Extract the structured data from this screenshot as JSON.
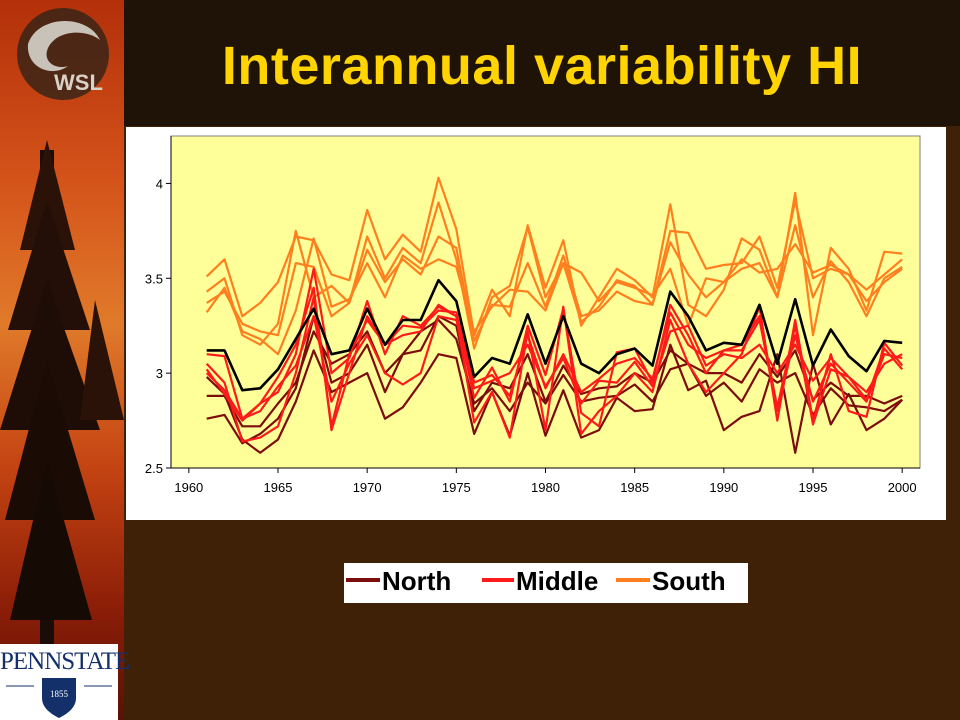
{
  "page_title": "Interannual variability HI",
  "logos": {
    "top_left": "WSL",
    "bottom_left": "PENNSTATE",
    "bottom_left_year": "1855"
  },
  "colors": {
    "north": "#7b0d0d",
    "middle": "#ff1a1a",
    "south": "#ff7f1f",
    "mean": "#000000",
    "plot_bg": "#ffff99",
    "title": "#ffd400"
  },
  "chart_data": {
    "type": "line",
    "title": "",
    "xlabel": "",
    "ylabel": "",
    "xlim": [
      1959,
      2001
    ],
    "ylim": [
      2.5,
      4.25
    ],
    "xticks": [
      "1960",
      "1965",
      "1970",
      "1975",
      "1980",
      "1985",
      "1990",
      "1995",
      "2000"
    ],
    "yticks": [
      "2.5",
      "3",
      "3.5",
      "4"
    ],
    "grid": false,
    "legend_position": "below",
    "legend": [
      {
        "label": "North",
        "group": "north"
      },
      {
        "label": "Middle",
        "group": "middle"
      },
      {
        "label": "South",
        "group": "south"
      }
    ],
    "x": [
      1961,
      1962,
      1963,
      1964,
      1965,
      1966,
      1967,
      1968,
      1969,
      1970,
      1971,
      1972,
      1973,
      1974,
      1975,
      1976,
      1977,
      1978,
      1979,
      1980,
      1981,
      1982,
      1983,
      1984,
      1985,
      1986,
      1987,
      1988,
      1989,
      1990,
      1991,
      1992,
      1993,
      1994,
      1995,
      1996,
      1997,
      1998,
      1999,
      2000
    ],
    "series": [
      {
        "group": "south",
        "values": [
          3.51,
          3.6,
          3.3,
          3.37,
          3.48,
          3.72,
          3.7,
          3.52,
          3.49,
          3.86,
          3.6,
          3.73,
          3.64,
          4.03,
          3.76,
          3.2,
          3.44,
          3.3,
          3.78,
          3.45,
          3.7,
          3.25,
          3.4,
          3.55,
          3.49,
          3.4,
          3.89,
          3.36,
          3.3,
          3.44,
          3.71,
          3.65,
          3.4,
          3.95,
          3.2,
          3.66,
          3.55,
          3.33,
          3.64,
          3.63
        ]
      },
      {
        "group": "south",
        "values": [
          3.43,
          3.5,
          3.2,
          3.15,
          3.26,
          3.75,
          3.4,
          3.46,
          3.37,
          3.72,
          3.5,
          3.66,
          3.58,
          3.9,
          3.6,
          3.13,
          3.4,
          3.46,
          3.77,
          3.4,
          3.58,
          3.27,
          3.35,
          3.49,
          3.46,
          3.36,
          3.75,
          3.74,
          3.55,
          3.57,
          3.58,
          3.72,
          3.45,
          3.91,
          3.5,
          3.55,
          3.52,
          3.44,
          3.52,
          3.6
        ]
      },
      {
        "group": "south",
        "values": [
          3.32,
          3.45,
          3.22,
          3.18,
          3.1,
          3.33,
          3.71,
          3.35,
          3.39,
          3.58,
          3.4,
          3.62,
          3.55,
          3.6,
          3.56,
          3.22,
          3.35,
          3.44,
          3.43,
          3.33,
          3.58,
          3.53,
          3.38,
          3.48,
          3.45,
          3.41,
          3.55,
          3.25,
          3.5,
          3.48,
          3.6,
          3.53,
          3.55,
          3.68,
          3.53,
          3.57,
          3.52,
          3.38,
          3.48,
          3.55
        ]
      },
      {
        "group": "south",
        "values": [
          3.37,
          3.43,
          3.26,
          3.22,
          3.2,
          3.58,
          3.56,
          3.3,
          3.37,
          3.65,
          3.48,
          3.6,
          3.52,
          3.72,
          3.66,
          3.17,
          3.36,
          3.35,
          3.58,
          3.35,
          3.62,
          3.3,
          3.33,
          3.43,
          3.38,
          3.36,
          3.69,
          3.52,
          3.4,
          3.48,
          3.55,
          3.58,
          3.4,
          3.78,
          3.4,
          3.59,
          3.48,
          3.3,
          3.5,
          3.56
        ]
      },
      {
        "group": "north",
        "values": [
          2.98,
          2.89,
          2.65,
          2.58,
          2.65,
          2.85,
          3.12,
          2.9,
          2.95,
          3.0,
          2.76,
          2.82,
          2.95,
          3.1,
          3.08,
          2.68,
          2.9,
          2.67,
          3.0,
          2.67,
          2.91,
          2.66,
          2.7,
          2.87,
          2.8,
          2.81,
          3.15,
          2.91,
          2.96,
          2.7,
          2.77,
          2.8,
          3.1,
          2.58,
          3.05,
          2.73,
          2.89,
          2.7,
          2.76,
          2.86
        ]
      },
      {
        "group": "north",
        "values": [
          2.76,
          2.78,
          2.63,
          2.68,
          2.76,
          2.92,
          3.3,
          2.95,
          3.0,
          3.15,
          2.9,
          3.1,
          3.22,
          3.28,
          3.18,
          2.84,
          2.92,
          2.8,
          2.95,
          2.84,
          2.99,
          2.85,
          2.87,
          2.88,
          2.94,
          2.85,
          3.02,
          3.05,
          2.88,
          2.95,
          2.85,
          3.02,
          2.95,
          3.0,
          2.78,
          2.92,
          2.83,
          2.82,
          2.8,
          2.86
        ]
      },
      {
        "group": "north",
        "values": [
          2.88,
          2.88,
          2.72,
          2.72,
          2.84,
          2.95,
          3.22,
          3.05,
          3.1,
          3.22,
          3.0,
          3.1,
          3.12,
          3.3,
          3.25,
          2.8,
          2.95,
          2.92,
          3.1,
          2.85,
          3.04,
          2.89,
          2.92,
          2.93,
          3.0,
          2.95,
          3.12,
          3.05,
          3.0,
          3.0,
          2.95,
          3.1,
          2.98,
          3.12,
          2.86,
          2.95,
          2.88,
          2.88,
          2.84,
          2.88
        ]
      },
      {
        "group": "middle",
        "values": [
          3.02,
          2.89,
          2.75,
          2.84,
          2.9,
          3.1,
          3.55,
          3.0,
          3.08,
          3.38,
          3.1,
          3.3,
          3.25,
          3.35,
          3.3,
          2.74,
          2.9,
          2.66,
          3.22,
          2.7,
          3.35,
          2.68,
          2.8,
          2.88,
          3.0,
          2.9,
          3.28,
          3.05,
          2.9,
          3.0,
          3.1,
          3.35,
          2.75,
          3.28,
          2.75,
          3.1,
          2.8,
          2.77,
          3.16,
          3.04
        ]
      },
      {
        "group": "middle",
        "values": [
          3.1,
          3.09,
          2.76,
          2.84,
          2.98,
          3.15,
          3.45,
          2.7,
          3.0,
          3.3,
          3.15,
          3.2,
          3.22,
          3.36,
          3.3,
          2.87,
          3.03,
          2.85,
          3.25,
          2.99,
          3.34,
          2.79,
          2.72,
          3.11,
          3.13,
          2.95,
          3.36,
          3.2,
          3.0,
          3.12,
          3.15,
          3.3,
          2.82,
          3.25,
          2.73,
          3.02,
          2.98,
          2.86,
          3.13,
          3.02
        ]
      },
      {
        "group": "middle",
        "values": [
          3.05,
          2.95,
          2.64,
          2.66,
          2.72,
          3.0,
          3.4,
          2.72,
          3.1,
          3.28,
          3.15,
          3.25,
          3.24,
          3.33,
          3.32,
          2.95,
          2.99,
          2.88,
          3.2,
          2.92,
          3.1,
          2.9,
          2.97,
          3.05,
          3.08,
          2.97,
          3.32,
          3.15,
          3.08,
          3.12,
          3.12,
          3.28,
          2.8,
          3.2,
          2.85,
          3.05,
          2.95,
          2.85,
          3.1,
          3.08
        ]
      },
      {
        "group": "middle",
        "values": [
          3.0,
          2.91,
          2.76,
          2.8,
          2.93,
          3.04,
          3.3,
          2.85,
          3.05,
          3.2,
          3.0,
          2.94,
          3.0,
          3.3,
          3.28,
          2.92,
          2.96,
          3.0,
          3.15,
          2.93,
          3.08,
          2.84,
          2.96,
          2.95,
          3.06,
          2.93,
          3.22,
          3.25,
          3.04,
          3.1,
          3.08,
          3.15,
          3.0,
          3.15,
          2.96,
          3.08,
          2.98,
          2.9,
          3.05,
          3.1
        ]
      },
      {
        "group": "mean",
        "values": [
          3.12,
          3.12,
          2.91,
          2.92,
          3.02,
          3.18,
          3.34,
          3.1,
          3.12,
          3.34,
          3.15,
          3.28,
          3.28,
          3.49,
          3.38,
          2.98,
          3.08,
          3.05,
          3.31,
          3.05,
          3.3,
          3.05,
          3.0,
          3.1,
          3.13,
          3.04,
          3.43,
          3.3,
          3.12,
          3.16,
          3.15,
          3.36,
          3.05,
          3.39,
          3.04,
          3.23,
          3.09,
          3.01,
          3.17,
          3.16
        ]
      }
    ]
  }
}
